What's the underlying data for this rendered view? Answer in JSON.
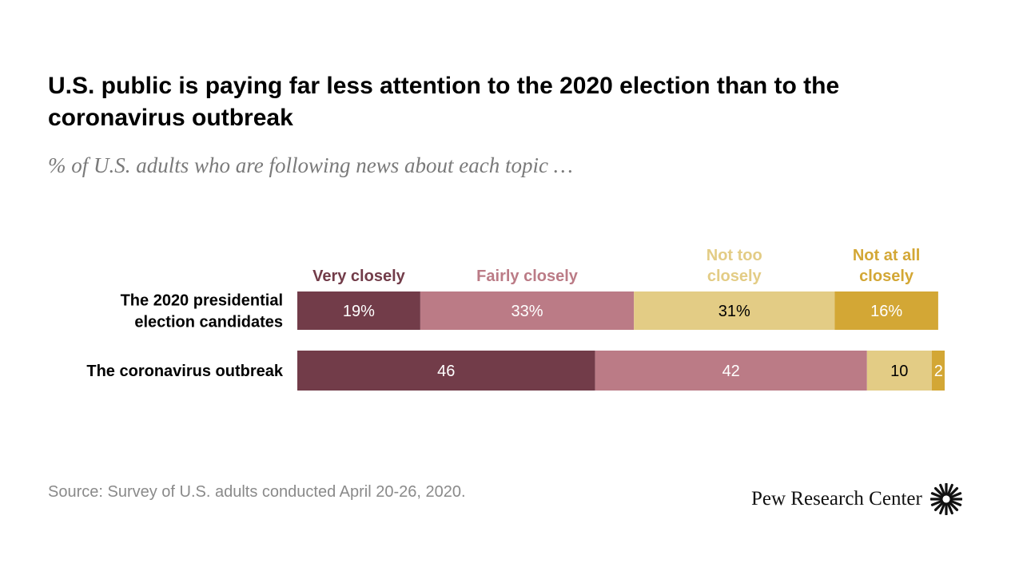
{
  "header": {
    "title": "U.S. public is paying far less attention to the 2020 election than to the coronavirus outbreak",
    "subtitle": "% of U.S. adults who are following news about each topic …"
  },
  "footer": {
    "source": "Source: Survey of U.S. adults conducted April 20-26, 2020.",
    "brand": "Pew Research Center",
    "logo_icon": "pew-sunburst-icon"
  },
  "chart_data": {
    "type": "bar",
    "orientation": "horizontal",
    "stacked": true,
    "categories": [
      "The 2020 presidential election candidates",
      "The coronavirus outbreak"
    ],
    "category_label_lines": [
      [
        "The 2020 presidential",
        "election candidates"
      ],
      [
        "The coronavirus outbreak"
      ]
    ],
    "series": [
      {
        "name": "Very closely",
        "label_lines": [
          "Very closely"
        ],
        "values": [
          19,
          46
        ],
        "data_labels": [
          "19%",
          "46"
        ],
        "color": "#723c49",
        "label_color": "#ffffff"
      },
      {
        "name": "Fairly closely",
        "label_lines": [
          "Fairly closely"
        ],
        "values": [
          33,
          42
        ],
        "data_labels": [
          "33%",
          "42"
        ],
        "color": "#bb7b86",
        "label_color": "#ffffff"
      },
      {
        "name": "Not too closely",
        "label_lines": [
          "Not too",
          "closely"
        ],
        "values": [
          31,
          10
        ],
        "data_labels": [
          "31%",
          "10"
        ],
        "color": "#e3cc85",
        "label_color": "#000000"
      },
      {
        "name": "Not at all closely",
        "label_lines": [
          "Not at all",
          "closely"
        ],
        "values": [
          16,
          2
        ],
        "data_labels": [
          "16%",
          "2"
        ],
        "color": "#d3a735",
        "label_color": "#ffffff"
      }
    ],
    "legend_colors": [
      "#723c49",
      "#bb7b86",
      "#e3cc85",
      "#d3a735"
    ],
    "xlim": [
      0,
      100
    ],
    "legend_placement": "top",
    "grid": false
  }
}
